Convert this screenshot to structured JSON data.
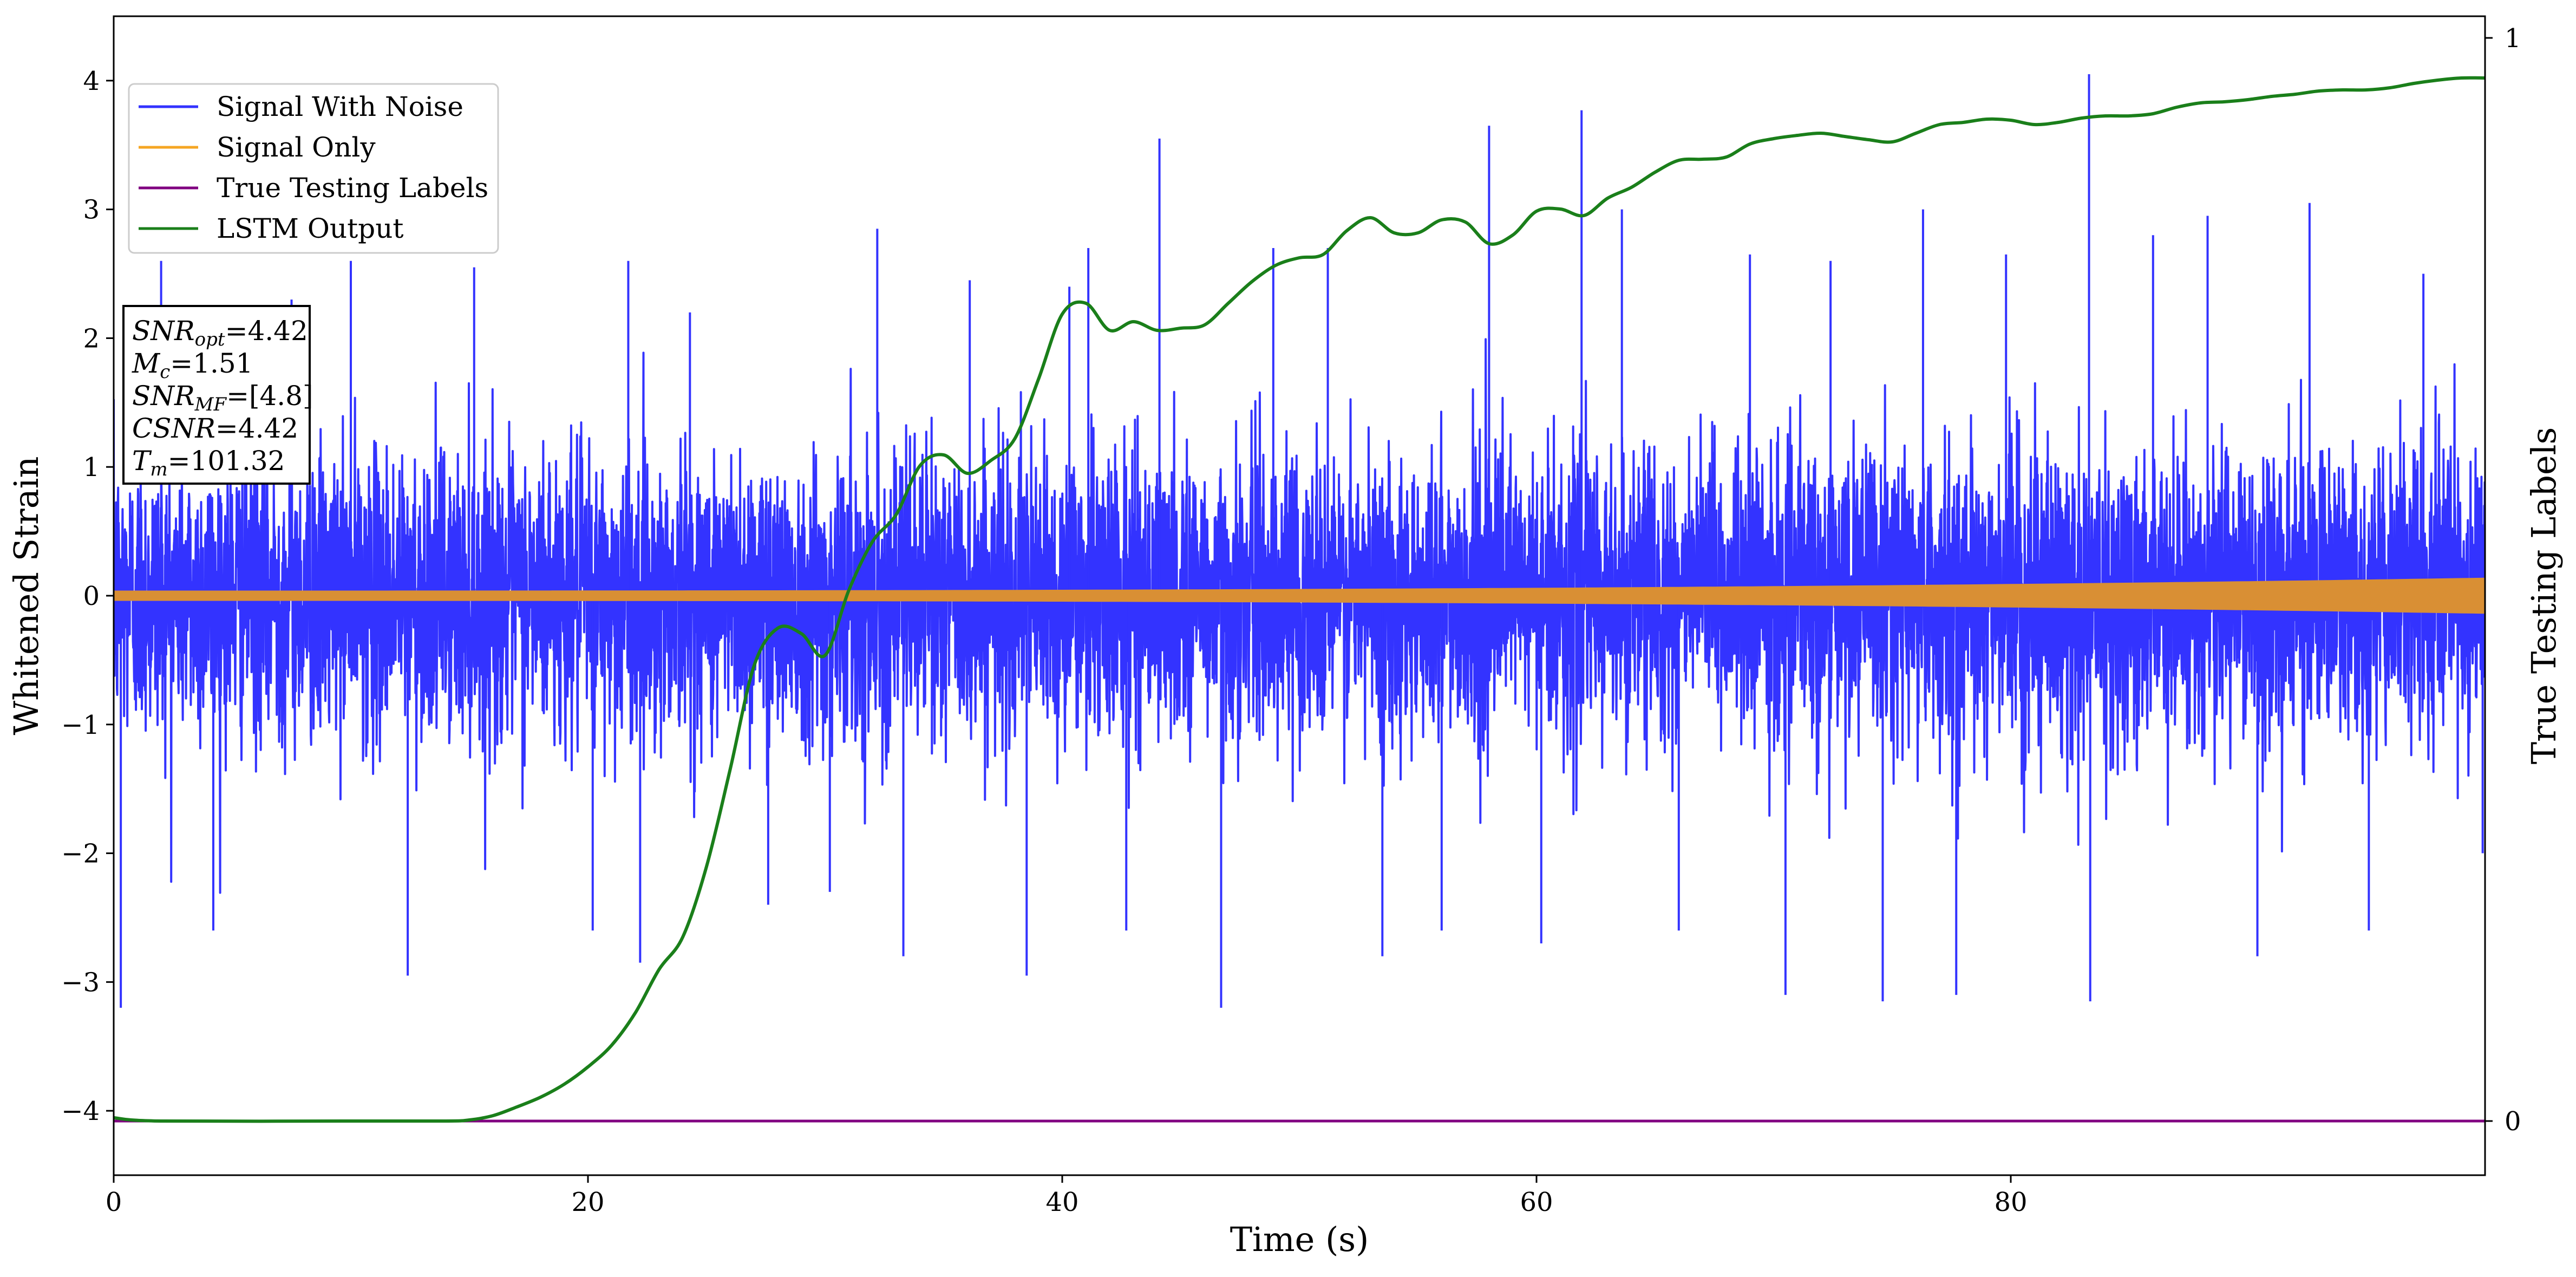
{
  "chart_data": {
    "type": "line",
    "xlabel": "Time (s)",
    "ylabel_left": "Whitened Strain",
    "ylabel_right": "True Testing Labels",
    "xlim": [
      0,
      100
    ],
    "ylim_left": [
      -4.5,
      4.5
    ],
    "ylim_right": [
      -0.05,
      1.02
    ],
    "x_ticks": [
      0,
      20,
      40,
      60,
      80
    ],
    "y_ticks_left": [
      -4,
      -3,
      -2,
      -1,
      0,
      1,
      2,
      3,
      4
    ],
    "y_ticks_right": [
      0,
      1
    ],
    "grid": false,
    "legend_position": "top-left",
    "colors": {
      "signal_with_noise": "#3333ff",
      "signal_only": "#d98f34",
      "true_labels": "#800080",
      "lstm": "#1a7f1a"
    },
    "legend": [
      {
        "name": "Signal With Noise",
        "color": "#3333ff"
      },
      {
        "name": "Signal Only",
        "color": "#f5a623"
      },
      {
        "name": "True Testing Labels",
        "color": "#800080"
      },
      {
        "name": "LSTM Output",
        "color": "#1a7f1a"
      }
    ],
    "annotation": [
      {
        "base": "SNR",
        "sub": "opt",
        "rest": "=4.42"
      },
      {
        "base": "M",
        "sub": "c",
        "rest": "=1.51"
      },
      {
        "base": "SNR",
        "sub": "MF",
        "rest": "=[4.8]"
      },
      {
        "base": "CSNR",
        "sub": "",
        "rest": "=4.42"
      },
      {
        "base": "T",
        "sub": "m",
        "rest": "=101.32"
      }
    ],
    "series": [
      {
        "name": "Signal With Noise",
        "axis": "left",
        "summary": {
          "typical_envelope": [
            -1.5,
            1.5
          ],
          "min": -3.2,
          "max": 4.05
        },
        "noise_std": 0.55,
        "peaks": [
          {
            "x": 0.3,
            "y": -3.2
          },
          {
            "x": 2.0,
            "y": 2.6
          },
          {
            "x": 4.2,
            "y": -2.6
          },
          {
            "x": 7.5,
            "y": 2.3
          },
          {
            "x": 10.0,
            "y": 2.6
          },
          {
            "x": 12.4,
            "y": -2.95
          },
          {
            "x": 15.2,
            "y": 2.55
          },
          {
            "x": 20.2,
            "y": -2.6
          },
          {
            "x": 21.7,
            "y": 2.6
          },
          {
            "x": 22.2,
            "y": -2.85
          },
          {
            "x": 24.3,
            "y": 2.2
          },
          {
            "x": 27.6,
            "y": -2.4
          },
          {
            "x": 30.2,
            "y": -2.3
          },
          {
            "x": 32.2,
            "y": 2.85
          },
          {
            "x": 33.3,
            "y": -2.8
          },
          {
            "x": 36.1,
            "y": 2.45
          },
          {
            "x": 38.5,
            "y": -2.95
          },
          {
            "x": 40.3,
            "y": 2.4
          },
          {
            "x": 41.1,
            "y": 2.7
          },
          {
            "x": 42.7,
            "y": -2.6
          },
          {
            "x": 44.1,
            "y": 3.55
          },
          {
            "x": 46.7,
            "y": -3.2
          },
          {
            "x": 48.9,
            "y": 2.7
          },
          {
            "x": 51.2,
            "y": 2.7
          },
          {
            "x": 53.5,
            "y": -2.8
          },
          {
            "x": 56.0,
            "y": -2.6
          },
          {
            "x": 58.0,
            "y": 3.65
          },
          {
            "x": 60.2,
            "y": -2.7
          },
          {
            "x": 61.9,
            "y": 3.77
          },
          {
            "x": 63.6,
            "y": 3.0
          },
          {
            "x": 66.0,
            "y": -2.6
          },
          {
            "x": 69.0,
            "y": 2.65
          },
          {
            "x": 70.5,
            "y": -3.1
          },
          {
            "x": 72.4,
            "y": 2.6
          },
          {
            "x": 74.6,
            "y": -3.15
          },
          {
            "x": 76.3,
            "y": 3.0
          },
          {
            "x": 77.7,
            "y": -3.1
          },
          {
            "x": 79.8,
            "y": 2.65
          },
          {
            "x": 83.3,
            "y": 4.05
          },
          {
            "x": 83.35,
            "y": -3.15
          },
          {
            "x": 86.0,
            "y": 2.8
          },
          {
            "x": 88.3,
            "y": 2.95
          },
          {
            "x": 90.4,
            "y": -2.8
          },
          {
            "x": 92.6,
            "y": 3.05
          },
          {
            "x": 95.1,
            "y": -2.6
          },
          {
            "x": 97.4,
            "y": 2.5
          },
          {
            "x": 99.9,
            "y": -2.0
          }
        ]
      },
      {
        "name": "Signal Only",
        "axis": "left",
        "amplitude_start": 0.04,
        "amplitude_end": 0.14
      },
      {
        "name": "True Testing Labels",
        "axis": "right",
        "x": [
          0,
          100
        ],
        "y": [
          0,
          0
        ]
      },
      {
        "name": "LSTM Output",
        "axis": "right",
        "x": [
          0,
          2,
          10,
          14,
          15,
          16,
          17,
          18,
          19,
          20,
          21,
          22,
          23,
          24,
          25,
          26,
          27,
          28,
          29,
          30,
          31,
          32,
          33,
          34,
          35,
          36,
          37,
          38,
          39,
          40,
          41,
          42,
          43,
          44,
          45,
          46,
          47,
          48,
          49,
          50,
          51,
          52,
          53,
          54,
          55,
          56,
          57,
          58,
          59,
          60,
          61,
          62,
          63,
          64,
          65,
          66,
          67,
          68,
          69,
          70,
          71,
          72,
          73,
          74,
          75,
          76,
          77,
          78,
          79,
          80,
          81,
          82,
          83,
          84,
          85,
          86,
          87,
          88,
          89,
          90,
          91,
          92,
          93,
          94,
          95,
          96,
          97,
          98,
          99,
          100
        ],
        "y": [
          0.003,
          0.0,
          0.0,
          0.0,
          0.001,
          0.005,
          0.013,
          0.022,
          0.034,
          0.05,
          0.07,
          0.1,
          0.14,
          0.17,
          0.235,
          0.325,
          0.42,
          0.455,
          0.45,
          0.43,
          0.49,
          0.535,
          0.56,
          0.605,
          0.615,
          0.598,
          0.61,
          0.63,
          0.685,
          0.745,
          0.755,
          0.73,
          0.738,
          0.73,
          0.732,
          0.735,
          0.755,
          0.775,
          0.79,
          0.797,
          0.8,
          0.822,
          0.834,
          0.82,
          0.82,
          0.832,
          0.83,
          0.81,
          0.818,
          0.84,
          0.842,
          0.836,
          0.852,
          0.862,
          0.876,
          0.887,
          0.888,
          0.89,
          0.902,
          0.907,
          0.91,
          0.912,
          0.909,
          0.906,
          0.904,
          0.912,
          0.92,
          0.922,
          0.925,
          0.924,
          0.92,
          0.922,
          0.926,
          0.928,
          0.928,
          0.93,
          0.936,
          0.94,
          0.941,
          0.943,
          0.946,
          0.948,
          0.951,
          0.952,
          0.952,
          0.954,
          0.958,
          0.961,
          0.963,
          0.963
        ]
      }
    ]
  }
}
